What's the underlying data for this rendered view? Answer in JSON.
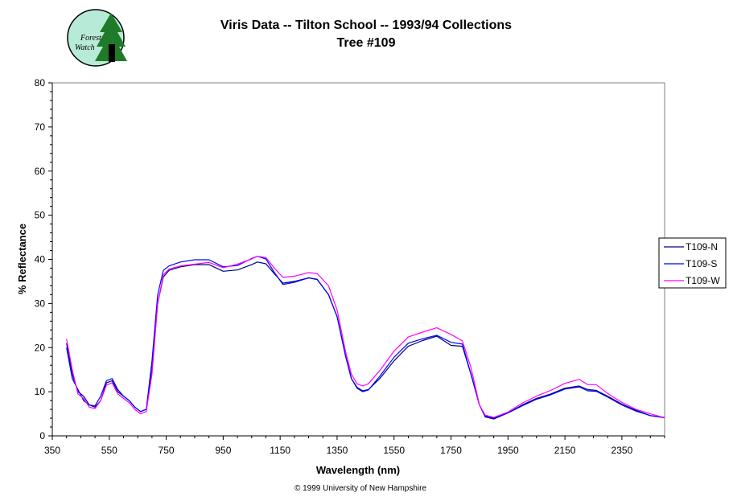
{
  "logo": {
    "line1": "Forest",
    "line2": "Watch",
    "bg_color": "#b8ead8",
    "tree_color": "#1f7a2a"
  },
  "copyright": "© 1999 University of New Hampshire",
  "chart_data": {
    "type": "line",
    "title": "Viris Data -- Tilton School -- 1993/94 Collections",
    "subtitle": "Tree #109",
    "xlabel": "Wavelength (nm)",
    "ylabel": "% Reflectance",
    "xlim": [
      350,
      2500
    ],
    "ylim": [
      0,
      80
    ],
    "xticks": [
      350,
      550,
      750,
      950,
      1150,
      1350,
      1550,
      1750,
      1950,
      2150,
      2350
    ],
    "yticks": [
      0,
      10,
      20,
      30,
      40,
      50,
      60,
      70,
      80
    ],
    "grid": false,
    "legend_position": "right",
    "series": [
      {
        "name": "T109-N",
        "color": "#000080",
        "points": [
          [
            400,
            21
          ],
          [
            420,
            14
          ],
          [
            440,
            10
          ],
          [
            460,
            9
          ],
          [
            480,
            7
          ],
          [
            500,
            6.5
          ],
          [
            520,
            8
          ],
          [
            540,
            12
          ],
          [
            560,
            12.5
          ],
          [
            580,
            10
          ],
          [
            600,
            9
          ],
          [
            620,
            8
          ],
          [
            640,
            6.5
          ],
          [
            660,
            5.5
          ],
          [
            680,
            6
          ],
          [
            700,
            15
          ],
          [
            720,
            30
          ],
          [
            740,
            36
          ],
          [
            760,
            37.5
          ],
          [
            800,
            38.3
          ],
          [
            850,
            38.8
          ],
          [
            900,
            38.8
          ],
          [
            950,
            37.3
          ],
          [
            1000,
            37.6
          ],
          [
            1050,
            38.8
          ],
          [
            1070,
            39.4
          ],
          [
            1100,
            39
          ],
          [
            1130,
            36.7
          ],
          [
            1160,
            34.6
          ],
          [
            1200,
            35
          ],
          [
            1250,
            35.8
          ],
          [
            1280,
            35.4
          ],
          [
            1320,
            32
          ],
          [
            1350,
            27
          ],
          [
            1380,
            18
          ],
          [
            1400,
            13
          ],
          [
            1420,
            11
          ],
          [
            1440,
            10.2
          ],
          [
            1460,
            10.5
          ],
          [
            1500,
            13
          ],
          [
            1550,
            17
          ],
          [
            1600,
            20.3
          ],
          [
            1650,
            21.6
          ],
          [
            1700,
            22.6
          ],
          [
            1750,
            20.5
          ],
          [
            1790,
            20.3
          ],
          [
            1820,
            14
          ],
          [
            1850,
            7
          ],
          [
            1870,
            4.3
          ],
          [
            1900,
            3.8
          ],
          [
            1950,
            5.2
          ],
          [
            2000,
            7
          ],
          [
            2050,
            8.5
          ],
          [
            2100,
            9.5
          ],
          [
            2150,
            10.8
          ],
          [
            2200,
            11.3
          ],
          [
            2230,
            10.5
          ],
          [
            2260,
            10.3
          ],
          [
            2300,
            9
          ],
          [
            2350,
            7.2
          ],
          [
            2400,
            5.8
          ],
          [
            2450,
            4.6
          ],
          [
            2500,
            4.2
          ]
        ]
      },
      {
        "name": "T109-S",
        "color": "#0000ff",
        "points": [
          [
            400,
            20
          ],
          [
            420,
            13
          ],
          [
            440,
            10.5
          ],
          [
            460,
            8
          ],
          [
            480,
            7
          ],
          [
            500,
            6.8
          ],
          [
            520,
            9
          ],
          [
            540,
            12.5
          ],
          [
            560,
            13
          ],
          [
            580,
            10.5
          ],
          [
            600,
            9
          ],
          [
            620,
            8
          ],
          [
            640,
            6.5
          ],
          [
            660,
            5.5
          ],
          [
            680,
            6
          ],
          [
            700,
            17
          ],
          [
            720,
            32
          ],
          [
            740,
            37.5
          ],
          [
            760,
            38.5
          ],
          [
            800,
            39.4
          ],
          [
            850,
            39.9
          ],
          [
            900,
            39.9
          ],
          [
            950,
            38.3
          ],
          [
            1000,
            38.6
          ],
          [
            1050,
            40.2
          ],
          [
            1070,
            40.7
          ],
          [
            1100,
            40.1
          ],
          [
            1130,
            37
          ],
          [
            1160,
            34.3
          ],
          [
            1200,
            34.8
          ],
          [
            1250,
            35.8
          ],
          [
            1280,
            35.5
          ],
          [
            1320,
            32
          ],
          [
            1350,
            27
          ],
          [
            1380,
            18
          ],
          [
            1400,
            13
          ],
          [
            1420,
            10.8
          ],
          [
            1440,
            10
          ],
          [
            1460,
            10.4
          ],
          [
            1500,
            13.5
          ],
          [
            1550,
            17.8
          ],
          [
            1600,
            21
          ],
          [
            1650,
            22
          ],
          [
            1700,
            22.8
          ],
          [
            1750,
            21.2
          ],
          [
            1790,
            20.8
          ],
          [
            1820,
            14
          ],
          [
            1850,
            7
          ],
          [
            1870,
            4.5
          ],
          [
            1900,
            4
          ],
          [
            1950,
            5.2
          ],
          [
            2000,
            6.8
          ],
          [
            2050,
            8.3
          ],
          [
            2100,
            9.3
          ],
          [
            2150,
            10.6
          ],
          [
            2200,
            11.1
          ],
          [
            2230,
            10.2
          ],
          [
            2260,
            10.1
          ],
          [
            2300,
            8.8
          ],
          [
            2350,
            7
          ],
          [
            2400,
            5.6
          ],
          [
            2450,
            4.6
          ],
          [
            2500,
            4.1
          ]
        ]
      },
      {
        "name": "T109-W",
        "color": "#ff00ff",
        "points": [
          [
            400,
            22
          ],
          [
            420,
            15
          ],
          [
            440,
            9.5
          ],
          [
            460,
            8.5
          ],
          [
            480,
            6.5
          ],
          [
            500,
            6.2
          ],
          [
            520,
            8
          ],
          [
            540,
            11.5
          ],
          [
            560,
            12
          ],
          [
            580,
            9.5
          ],
          [
            600,
            8.5
          ],
          [
            620,
            7.5
          ],
          [
            640,
            6
          ],
          [
            660,
            5
          ],
          [
            680,
            5.5
          ],
          [
            700,
            14
          ],
          [
            720,
            30
          ],
          [
            740,
            36.5
          ],
          [
            760,
            37.8
          ],
          [
            800,
            38.5
          ],
          [
            850,
            38.9
          ],
          [
            900,
            39.3
          ],
          [
            950,
            38.1
          ],
          [
            1000,
            38.9
          ],
          [
            1050,
            40.1
          ],
          [
            1070,
            40.7
          ],
          [
            1100,
            40.4
          ],
          [
            1130,
            38
          ],
          [
            1160,
            35.9
          ],
          [
            1200,
            36.2
          ],
          [
            1250,
            37
          ],
          [
            1280,
            36.8
          ],
          [
            1320,
            34
          ],
          [
            1350,
            28.5
          ],
          [
            1380,
            19
          ],
          [
            1400,
            14
          ],
          [
            1420,
            11.8
          ],
          [
            1440,
            11.3
          ],
          [
            1460,
            11.8
          ],
          [
            1500,
            14.8
          ],
          [
            1550,
            19.2
          ],
          [
            1600,
            22.4
          ],
          [
            1650,
            23.5
          ],
          [
            1700,
            24.5
          ],
          [
            1750,
            23
          ],
          [
            1790,
            21.5
          ],
          [
            1820,
            15.5
          ],
          [
            1850,
            7
          ],
          [
            1870,
            4.7
          ],
          [
            1900,
            4.2
          ],
          [
            1950,
            5.4
          ],
          [
            2000,
            7.4
          ],
          [
            2050,
            9
          ],
          [
            2100,
            10.3
          ],
          [
            2150,
            11.9
          ],
          [
            2200,
            12.8
          ],
          [
            2230,
            11.6
          ],
          [
            2260,
            11.6
          ],
          [
            2300,
            9.6
          ],
          [
            2350,
            7.6
          ],
          [
            2400,
            6
          ],
          [
            2450,
            5
          ],
          [
            2500,
            4.1
          ]
        ]
      }
    ]
  }
}
